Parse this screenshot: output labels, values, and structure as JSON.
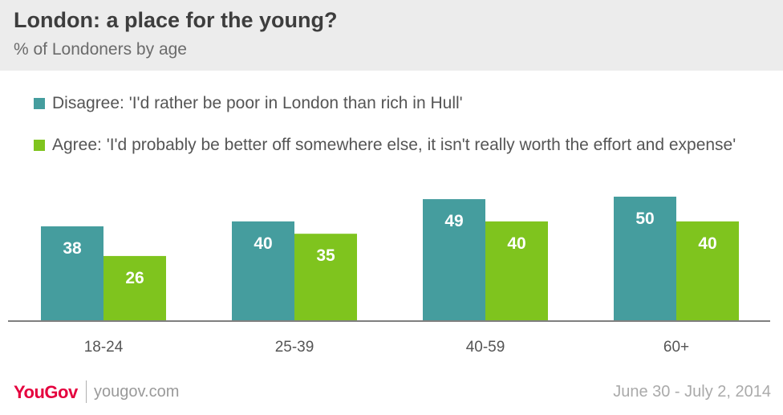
{
  "header": {
    "title": "London: a place for the young?",
    "subtitle": "% of Londoners by age"
  },
  "chart_data": {
    "type": "bar",
    "categories": [
      "18-24",
      "25-39",
      "40-59",
      "60+"
    ],
    "series": [
      {
        "name": "Disagree: 'I'd rather be poor in London than rich in Hull'",
        "color": "#459d9e",
        "values": [
          38,
          40,
          49,
          50
        ]
      },
      {
        "name": "Agree: 'I'd probably be better off somewhere else, it isn't really worth the effort and expense'",
        "color": "#7fc41e",
        "values": [
          26,
          35,
          40,
          40
        ]
      }
    ],
    "title": "London: a place for the young?",
    "ylim": [
      0,
      50
    ],
    "grid": false,
    "legend_position": "top-left"
  },
  "footer": {
    "logo": "YouGov",
    "site": "yougov.com",
    "date": "June 30 - July 2, 2014"
  }
}
